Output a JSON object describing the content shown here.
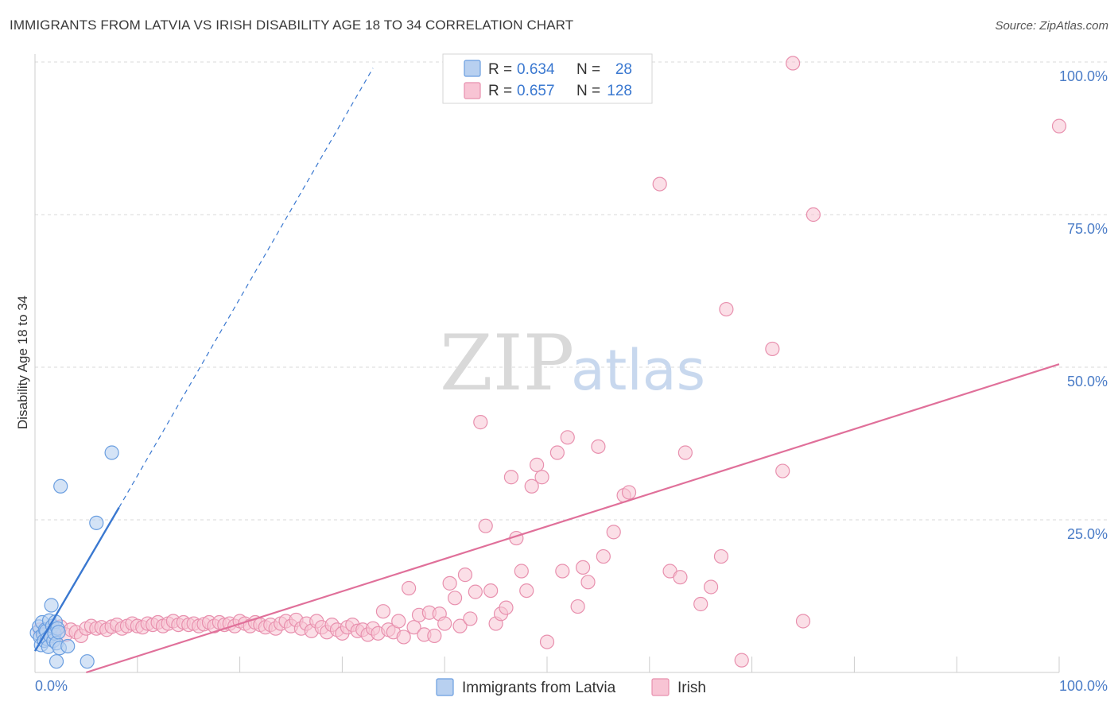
{
  "title": "IMMIGRANTS FROM LATVIA VS IRISH DISABILITY AGE 18 TO 34 CORRELATION CHART",
  "source": "Source: ZipAtlas.com",
  "watermark": {
    "zip": "ZIP",
    "atlas": "atlas"
  },
  "colors": {
    "blue_fill": "#b8d0f0",
    "blue_stroke": "#6a9ee0",
    "blue_line": "#3a78d0",
    "pink_fill": "#f8c4d4",
    "pink_stroke": "#e890ae",
    "pink_line": "#e0709a",
    "grid": "#d8d8d8",
    "tick_text": "#4a7cc7"
  },
  "legend": {
    "rows": [
      {
        "r_label": "R = ",
        "r_value": "0.634",
        "n_label": "N = ",
        "n_value": "28"
      },
      {
        "r_label": "R = ",
        "r_value": "0.657",
        "n_label": "N = ",
        "n_value": "128"
      }
    ]
  },
  "bottom_legend": {
    "series1": "Immigrants from Latvia",
    "series2": "Irish"
  },
  "chart_data": {
    "type": "scatter",
    "title": "IMMIGRANTS FROM LATVIA VS IRISH DISABILITY AGE 18 TO 34 CORRELATION CHART",
    "xlabel": "",
    "ylabel": "Disability Age 18 to 34",
    "xlim": [
      0,
      100
    ],
    "ylim": [
      0,
      100
    ],
    "x_tick_labels": [
      "0.0%",
      "100.0%"
    ],
    "y_tick_labels": [
      "25.0%",
      "50.0%",
      "75.0%",
      "100.0%"
    ],
    "y_ticks": [
      25,
      50,
      75,
      100
    ],
    "series": [
      {
        "name": "Immigrants from Latvia",
        "R": 0.634,
        "N": 28,
        "trend": {
          "x0": 0,
          "y0": 3.5,
          "x1": 8.2,
          "y1": 27,
          "dash_x1": 33,
          "dash_y1": 99
        },
        "points": [
          [
            0.2,
            6.5
          ],
          [
            0.4,
            7.5
          ],
          [
            0.5,
            5.8
          ],
          [
            0.6,
            4.5
          ],
          [
            0.7,
            8.2
          ],
          [
            0.8,
            6.2
          ],
          [
            0.9,
            5.2
          ],
          [
            1.0,
            7.0
          ],
          [
            1.1,
            6.8
          ],
          [
            1.2,
            5.5
          ],
          [
            1.3,
            4.2
          ],
          [
            1.4,
            8.5
          ],
          [
            1.5,
            6.0
          ],
          [
            1.6,
            11.0
          ],
          [
            1.7,
            7.6
          ],
          [
            1.8,
            5.2
          ],
          [
            1.9,
            6.4
          ],
          [
            2.0,
            8.3
          ],
          [
            2.1,
            4.8
          ],
          [
            2.2,
            7.2
          ],
          [
            2.3,
            6.6
          ],
          [
            2.4,
            4.0
          ],
          [
            2.1,
            1.8
          ],
          [
            2.5,
            30.5
          ],
          [
            3.2,
            4.3
          ],
          [
            5.1,
            1.8
          ],
          [
            6.0,
            24.5
          ],
          [
            7.5,
            36.0
          ]
        ]
      },
      {
        "name": "Irish",
        "R": 0.657,
        "N": 128,
        "trend": {
          "x0": 5,
          "y0": 0,
          "x1": 100,
          "y1": 50.5
        },
        "points": [
          [
            0.5,
            7.0
          ],
          [
            1.0,
            6.5
          ],
          [
            1.5,
            7.2
          ],
          [
            2.0,
            6.8
          ],
          [
            2.5,
            7.5
          ],
          [
            3.0,
            6.2
          ],
          [
            3.5,
            7.0
          ],
          [
            4.0,
            6.6
          ],
          [
            4.5,
            6.0
          ],
          [
            5.0,
            7.2
          ],
          [
            5.5,
            7.6
          ],
          [
            6.0,
            7.2
          ],
          [
            6.5,
            7.4
          ],
          [
            7.0,
            7.0
          ],
          [
            7.5,
            7.5
          ],
          [
            8.0,
            7.8
          ],
          [
            8.5,
            7.2
          ],
          [
            9.0,
            7.6
          ],
          [
            9.5,
            8.0
          ],
          [
            10.0,
            7.6
          ],
          [
            10.5,
            7.4
          ],
          [
            11.0,
            8.0
          ],
          [
            11.5,
            7.8
          ],
          [
            12.0,
            8.2
          ],
          [
            12.5,
            7.6
          ],
          [
            13.0,
            8.0
          ],
          [
            13.5,
            8.4
          ],
          [
            14.0,
            7.8
          ],
          [
            14.5,
            8.2
          ],
          [
            15.0,
            7.8
          ],
          [
            15.5,
            8.0
          ],
          [
            16.0,
            7.6
          ],
          [
            16.5,
            7.9
          ],
          [
            17.0,
            8.2
          ],
          [
            17.5,
            7.6
          ],
          [
            18.0,
            8.2
          ],
          [
            18.5,
            7.8
          ],
          [
            19.0,
            8.0
          ],
          [
            19.5,
            7.6
          ],
          [
            20.0,
            8.4
          ],
          [
            20.5,
            8.0
          ],
          [
            21.0,
            7.6
          ],
          [
            21.5,
            8.2
          ],
          [
            22.0,
            7.8
          ],
          [
            22.5,
            7.4
          ],
          [
            23.0,
            7.8
          ],
          [
            23.5,
            7.2
          ],
          [
            24.0,
            8.0
          ],
          [
            24.5,
            8.4
          ],
          [
            25.0,
            7.6
          ],
          [
            25.5,
            8.6
          ],
          [
            26.0,
            7.2
          ],
          [
            26.5,
            8.0
          ],
          [
            27.0,
            6.8
          ],
          [
            27.5,
            8.4
          ],
          [
            28.0,
            7.4
          ],
          [
            28.5,
            6.6
          ],
          [
            29.0,
            7.8
          ],
          [
            29.5,
            7.0
          ],
          [
            30.0,
            6.4
          ],
          [
            30.5,
            7.4
          ],
          [
            31.0,
            7.8
          ],
          [
            31.5,
            6.8
          ],
          [
            32.0,
            7.0
          ],
          [
            32.5,
            6.2
          ],
          [
            33.0,
            7.2
          ],
          [
            33.5,
            6.4
          ],
          [
            34.0,
            10.0
          ],
          [
            34.5,
            7.0
          ],
          [
            35.0,
            6.6
          ],
          [
            35.5,
            8.4
          ],
          [
            36.0,
            5.8
          ],
          [
            36.5,
            13.8
          ],
          [
            37.0,
            7.4
          ],
          [
            37.5,
            9.4
          ],
          [
            38.0,
            6.2
          ],
          [
            38.5,
            9.8
          ],
          [
            39.0,
            6.0
          ],
          [
            39.5,
            9.6
          ],
          [
            40.0,
            8.0
          ],
          [
            40.5,
            14.6
          ],
          [
            41.0,
            12.2
          ],
          [
            41.5,
            7.6
          ],
          [
            42.0,
            16.0
          ],
          [
            42.5,
            8.8
          ],
          [
            43.0,
            13.2
          ],
          [
            43.5,
            41.0
          ],
          [
            44.0,
            24.0
          ],
          [
            44.5,
            13.4
          ],
          [
            45.0,
            8.0
          ],
          [
            45.5,
            9.6
          ],
          [
            46.0,
            10.6
          ],
          [
            46.5,
            32.0
          ],
          [
            47.0,
            22.0
          ],
          [
            47.5,
            16.6
          ],
          [
            48.0,
            13.4
          ],
          [
            48.5,
            30.5
          ],
          [
            49.0,
            34.0
          ],
          [
            49.5,
            32.0
          ],
          [
            50.0,
            5.0
          ],
          [
            51.0,
            36.0
          ],
          [
            51.5,
            16.6
          ],
          [
            52.0,
            38.5
          ],
          [
            53.0,
            10.8
          ],
          [
            53.5,
            17.2
          ],
          [
            54.0,
            14.8
          ],
          [
            55.0,
            37.0
          ],
          [
            55.5,
            19.0
          ],
          [
            56.5,
            23.0
          ],
          [
            57.5,
            29.0
          ],
          [
            58.0,
            29.5
          ],
          [
            61.0,
            80.0
          ],
          [
            62.0,
            16.6
          ],
          [
            63.0,
            15.6
          ],
          [
            63.5,
            36.0
          ],
          [
            65.0,
            11.2
          ],
          [
            66.0,
            14.0
          ],
          [
            67.0,
            19.0
          ],
          [
            67.5,
            59.5
          ],
          [
            69.0,
            2.0
          ],
          [
            72.0,
            53.0
          ],
          [
            73.0,
            33.0
          ],
          [
            74.0,
            99.8
          ],
          [
            75.0,
            8.4
          ],
          [
            76.0,
            75.0
          ],
          [
            100.0,
            89.5
          ]
        ]
      }
    ]
  }
}
